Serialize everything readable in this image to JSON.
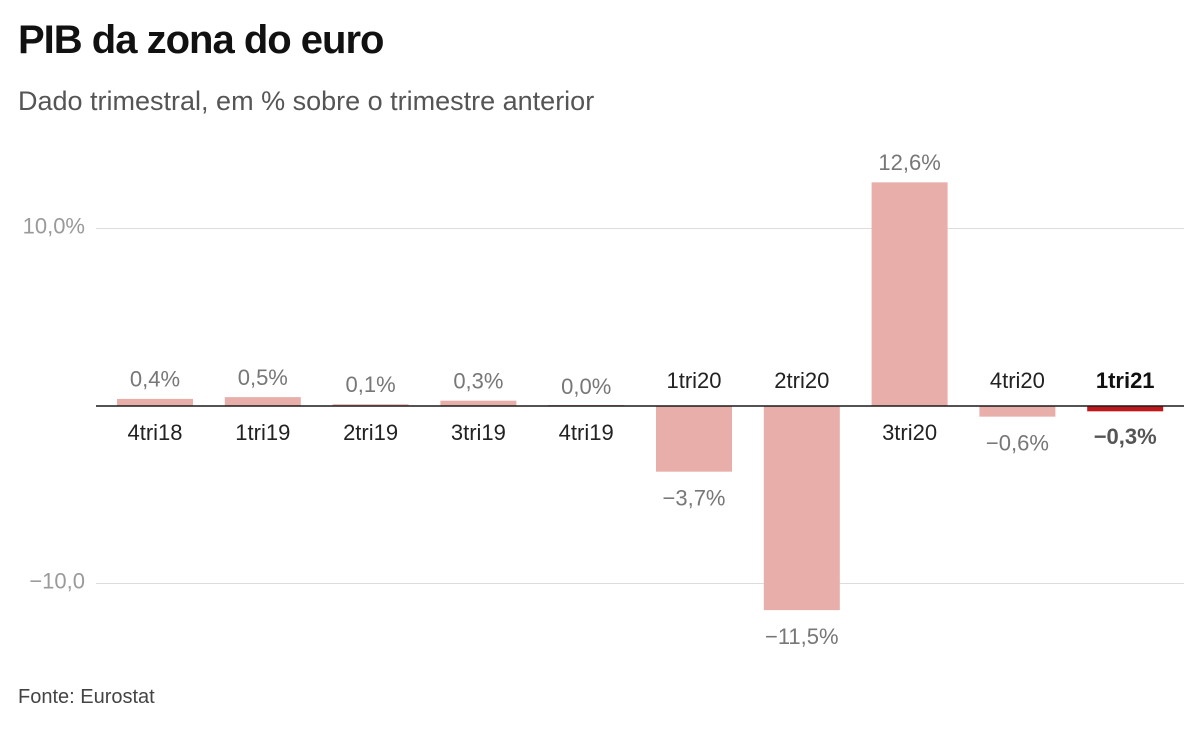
{
  "header": {
    "title": "PIB da zona do euro",
    "subtitle": "Dado trimestral, em % sobre o trimestre anterior"
  },
  "footer": {
    "source": "Fonte: Eurostat"
  },
  "colors": {
    "bar": "#e8aeaa",
    "highlight_bar": "#c0171c",
    "grid": "#dddddd",
    "zero_line": "#1a1a1a"
  },
  "chart_data": {
    "type": "bar",
    "categories": [
      "4tri18",
      "1tri19",
      "2tri19",
      "3tri19",
      "4tri19",
      "1tri20",
      "2tri20",
      "3tri20",
      "4tri20",
      "1tri21"
    ],
    "values": [
      0.4,
      0.5,
      0.1,
      0.3,
      0.0,
      -3.7,
      -11.5,
      12.6,
      -0.6,
      -0.3
    ],
    "value_labels": [
      "0,4%",
      "0,5%",
      "0,1%",
      "0,3%",
      "0,0%",
      "−3,7%",
      "−11,5%",
      "12,6%",
      "−0,6%",
      "−0,3%"
    ],
    "highlight": "1tri21",
    "yticks": [
      {
        "value": 10,
        "label": "10,0%"
      },
      {
        "value": -10,
        "label": "−10,0"
      }
    ],
    "ylim": [
      -13,
      13
    ],
    "xlabel": "",
    "ylabel": "",
    "grid": true,
    "legend": "none"
  }
}
